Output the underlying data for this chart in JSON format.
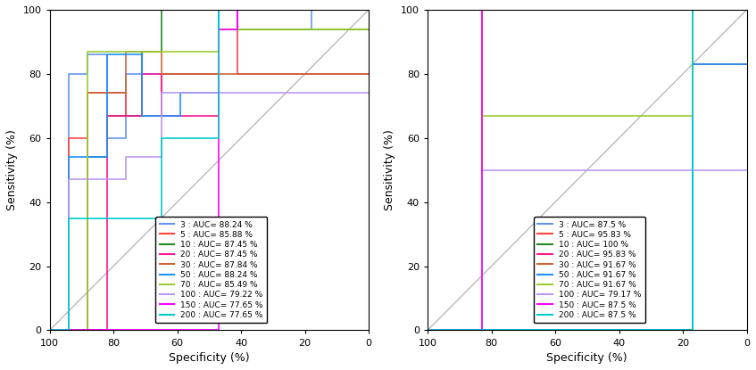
{
  "plot1": {
    "xlabel": "Specificity (%)",
    "ylabel": "Sensitivity (%)",
    "xlim": [
      100,
      0
    ],
    "ylim": [
      0,
      100
    ],
    "curves": [
      {
        "label": "3 : AUC= 88.24 %",
        "color": "#6495ED",
        "x": [
          100,
          94,
          94,
          88,
          88,
          82,
          82,
          76,
          76,
          47,
          47,
          41,
          41,
          18,
          18,
          0
        ],
        "y": [
          0,
          0,
          80,
          80,
          86,
          86,
          60,
          60,
          80,
          80,
          100,
          100,
          94,
          94,
          100,
          100
        ]
      },
      {
        "label": "5 : AUC= 85.88 %",
        "color": "#FF4444",
        "x": [
          100,
          94,
          94,
          88,
          88,
          76,
          76,
          65,
          65,
          47,
          47,
          41,
          41,
          0
        ],
        "y": [
          0,
          0,
          60,
          60,
          74,
          74,
          67,
          67,
          80,
          80,
          94,
          94,
          80,
          80
        ]
      },
      {
        "label": "10 : AUC= 87.45 %",
        "color": "#228B22",
        "x": [
          100,
          88,
          88,
          82,
          82,
          71,
          71,
          65,
          65,
          47,
          47,
          0
        ],
        "y": [
          0,
          0,
          54,
          54,
          67,
          67,
          87,
          87,
          100,
          100,
          94,
          94
        ]
      },
      {
        "label": "20 : AUC= 87.45 %",
        "color": "#FF1493",
        "x": [
          100,
          82,
          82,
          71,
          71,
          65,
          65,
          47,
          47,
          41,
          41,
          0
        ],
        "y": [
          0,
          0,
          67,
          67,
          80,
          80,
          67,
          67,
          94,
          94,
          100,
          100
        ]
      },
      {
        "label": "30 : AUC= 87.84 %",
        "color": "#CC6633",
        "x": [
          100,
          88,
          88,
          76,
          76,
          65,
          65,
          41,
          41,
          0
        ],
        "y": [
          0,
          0,
          74,
          74,
          87,
          87,
          80,
          80,
          80,
          80
        ]
      },
      {
        "label": "50 : AUC= 88.24 %",
        "color": "#1E90FF",
        "x": [
          100,
          94,
          94,
          82,
          82,
          71,
          71,
          59,
          59,
          47,
          47,
          0
        ],
        "y": [
          0,
          0,
          54,
          54,
          86,
          86,
          67,
          67,
          74,
          74,
          100,
          100
        ]
      },
      {
        "label": "70 : AUC= 85.49 %",
        "color": "#9ACD32",
        "x": [
          100,
          88,
          88,
          65,
          65,
          47,
          47,
          0
        ],
        "y": [
          0,
          0,
          87,
          87,
          87,
          87,
          94,
          94
        ]
      },
      {
        "label": "100 : AUC= 79.22 %",
        "color": "#BB99EE",
        "x": [
          100,
          94,
          94,
          76,
          76,
          65,
          65,
          47,
          47,
          0
        ],
        "y": [
          0,
          0,
          47,
          47,
          54,
          54,
          74,
          74,
          74,
          74
        ]
      },
      {
        "label": "150 : AUC= 77.65 %",
        "color": "#FF00FF",
        "x": [
          100,
          47,
          47,
          41,
          41,
          0
        ],
        "y": [
          0,
          0,
          94,
          94,
          100,
          100
        ]
      },
      {
        "label": "200 : AUC= 77.65 %",
        "color": "#00CCCC",
        "x": [
          100,
          94,
          94,
          65,
          65,
          47,
          47,
          0
        ],
        "y": [
          0,
          0,
          35,
          35,
          60,
          60,
          100,
          100
        ]
      }
    ]
  },
  "plot2": {
    "xlabel": "Specificity (%)",
    "ylabel": "Sensitivity (%)",
    "xlim": [
      100,
      0
    ],
    "ylim": [
      0,
      100
    ],
    "curves": [
      {
        "label": "3 : AUC= 87.5 %",
        "color": "#6495ED",
        "x": [
          100,
          17,
          17,
          0
        ],
        "y": [
          0,
          0,
          83,
          83
        ]
      },
      {
        "label": "5 : AUC= 95.83 %",
        "color": "#FF4444",
        "x": [
          100,
          83,
          83,
          0
        ],
        "y": [
          0,
          0,
          100,
          100
        ]
      },
      {
        "label": "10 : AUC= 100 %",
        "color": "#228B22",
        "x": [
          100,
          83,
          83,
          0
        ],
        "y": [
          0,
          0,
          100,
          100
        ]
      },
      {
        "label": "20 : AUC= 95.83 %",
        "color": "#FF1493",
        "x": [
          100,
          83,
          83,
          0
        ],
        "y": [
          0,
          0,
          100,
          100
        ]
      },
      {
        "label": "30 : AUC= 91.67 %",
        "color": "#CC6633",
        "x": [
          100,
          83,
          83,
          17,
          17,
          0
        ],
        "y": [
          0,
          0,
          100,
          100,
          83,
          83
        ]
      },
      {
        "label": "50 : AUC= 91.67 %",
        "color": "#1E90FF",
        "x": [
          100,
          17,
          17,
          0
        ],
        "y": [
          0,
          0,
          83,
          83
        ]
      },
      {
        "label": "70 : AUC= 91.67 %",
        "color": "#9ACD32",
        "x": [
          100,
          83,
          83,
          17,
          17,
          0
        ],
        "y": [
          0,
          0,
          67,
          67,
          100,
          100
        ]
      },
      {
        "label": "100 : AUC= 79.17 %",
        "color": "#BB99EE",
        "x": [
          100,
          83,
          83,
          0
        ],
        "y": [
          0,
          0,
          50,
          50
        ]
      },
      {
        "label": "150 : AUC= 87.5 %",
        "color": "#FF00FF",
        "x": [
          100,
          83,
          83,
          0
        ],
        "y": [
          0,
          0,
          100,
          100
        ]
      },
      {
        "label": "200 : AUC= 87.5 %",
        "color": "#00CCCC",
        "x": [
          100,
          17,
          17,
          0
        ],
        "y": [
          0,
          0,
          100,
          100
        ]
      }
    ]
  },
  "legend_loc": "lower right",
  "line_width": 1.2,
  "diag_color": "#aaaaaa",
  "tick_fontsize": 8,
  "label_fontsize": 9,
  "legend_fontsize": 6.5
}
